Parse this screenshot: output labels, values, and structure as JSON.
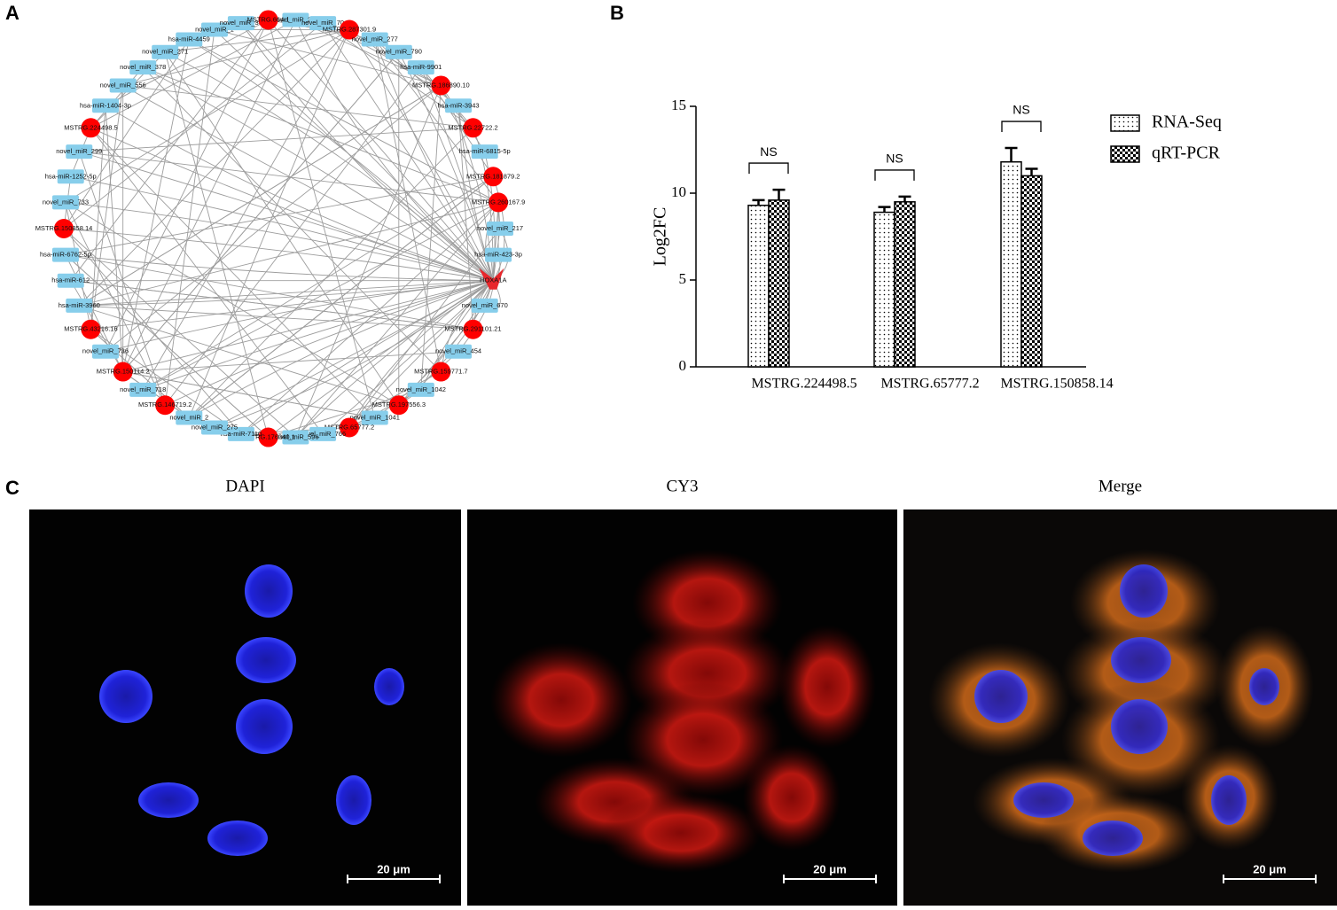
{
  "panel_labels": [
    "A",
    "B",
    "C"
  ],
  "network": {
    "nodes": [
      {
        "label": "novel_miR_285",
        "kind": "mirna"
      },
      {
        "label": "novel_miR_70",
        "kind": "mirna"
      },
      {
        "label": "MSTRG.287301.9",
        "kind": "lncrna"
      },
      {
        "label": "novel_miR_277",
        "kind": "mirna"
      },
      {
        "label": "novel_miR_790",
        "kind": "mirna"
      },
      {
        "label": "hsa-miR-9901",
        "kind": "mirna"
      },
      {
        "label": "MSTRG.186890.10",
        "kind": "lncrna"
      },
      {
        "label": "hsa-miR-3943",
        "kind": "mirna"
      },
      {
        "label": "MSTRG.22722.2",
        "kind": "lncrna"
      },
      {
        "label": "hsa-miR-6815-5p",
        "kind": "mirna"
      },
      {
        "label": "MSTRG.181879.2",
        "kind": "lncrna"
      },
      {
        "label": "MSTRG.260167.9",
        "kind": "lncrna"
      },
      {
        "label": "novel_miR_217",
        "kind": "mirna"
      },
      {
        "label": "hsa-miR-423-3p",
        "kind": "mirna"
      },
      {
        "label": "HOXA1A",
        "kind": "mrna"
      },
      {
        "label": "novel_miR_670",
        "kind": "mirna"
      },
      {
        "label": "MSTRG.291101.21",
        "kind": "lncrna"
      },
      {
        "label": "novel_miR_454",
        "kind": "mirna"
      },
      {
        "label": "MSTRG.159771.7",
        "kind": "lncrna"
      },
      {
        "label": "novel_miR_1042",
        "kind": "mirna"
      },
      {
        "label": "MSTRG.197556.3",
        "kind": "lncrna"
      },
      {
        "label": "novel_miR_1041",
        "kind": "mirna"
      },
      {
        "label": "MSTRG.65777.2",
        "kind": "lncrna"
      },
      {
        "label": "novel_miR_766",
        "kind": "mirna"
      },
      {
        "label": "novel_miR_596",
        "kind": "mirna"
      },
      {
        "label": "MSTRG.176040.1",
        "kind": "lncrna"
      },
      {
        "label": "hsa-miR-7110",
        "kind": "mirna"
      },
      {
        "label": "novel_miR_275",
        "kind": "mirna"
      },
      {
        "label": "novel_miR_2",
        "kind": "mirna"
      },
      {
        "label": "MSTRG.146719.2",
        "kind": "lncrna"
      },
      {
        "label": "novel_miR_718",
        "kind": "mirna"
      },
      {
        "label": "MSTRG.150114.2",
        "kind": "lncrna"
      },
      {
        "label": "novel_miR_736",
        "kind": "mirna"
      },
      {
        "label": "MSTRG.43216.16",
        "kind": "lncrna"
      },
      {
        "label": "hsa-miR-3960",
        "kind": "mirna"
      },
      {
        "label": "hsa-miR-612",
        "kind": "mirna"
      },
      {
        "label": "hsa-miR-6762-5p",
        "kind": "mirna"
      },
      {
        "label": "MSTRG.150858.14",
        "kind": "lncrna"
      },
      {
        "label": "novel_miR_733",
        "kind": "mirna"
      },
      {
        "label": "hsa-miR-1252-5p",
        "kind": "mirna"
      },
      {
        "label": "novel_miR_299",
        "kind": "mirna"
      },
      {
        "label": "MSTRG.224498.5",
        "kind": "lncrna"
      },
      {
        "label": "hsa-miR-1404-3p",
        "kind": "mirna"
      },
      {
        "label": "novel_miR_556",
        "kind": "mirna"
      },
      {
        "label": "novel_miR_378",
        "kind": "mirna"
      },
      {
        "label": "novel_miR_271",
        "kind": "mirna"
      },
      {
        "label": "hsa-miR-4459",
        "kind": "mirna"
      },
      {
        "label": "novel_miR_1",
        "kind": "mirna"
      },
      {
        "label": "novel_miR_36",
        "kind": "mirna"
      },
      {
        "label": "MSTRG.664.1",
        "kind": "lncrna"
      }
    ]
  },
  "chart_data": {
    "type": "bar",
    "y_label": "Log2FC",
    "categories": [
      "MSTRG.224498.5",
      "MSTRG.65777.2",
      "MSTRG.150858.14"
    ],
    "series": [
      {
        "name": "RNA-Seq",
        "pattern": "dots",
        "values": [
          9.3,
          8.9,
          11.8
        ],
        "errors": [
          0.3,
          0.3,
          0.8
        ]
      },
      {
        "name": "qRT-PCR",
        "pattern": "checks",
        "values": [
          9.6,
          9.5,
          11.0
        ],
        "errors": [
          0.6,
          0.3,
          0.4
        ]
      }
    ],
    "annotations": [
      "NS",
      "NS",
      "NS"
    ],
    "ylim": [
      0,
      15
    ],
    "yticks": [
      0,
      5,
      10,
      15
    ],
    "legend": "right"
  },
  "microscopy": {
    "channels": [
      "DAPI",
      "CY3",
      "Merge"
    ],
    "scale_bar": "20 μm"
  }
}
